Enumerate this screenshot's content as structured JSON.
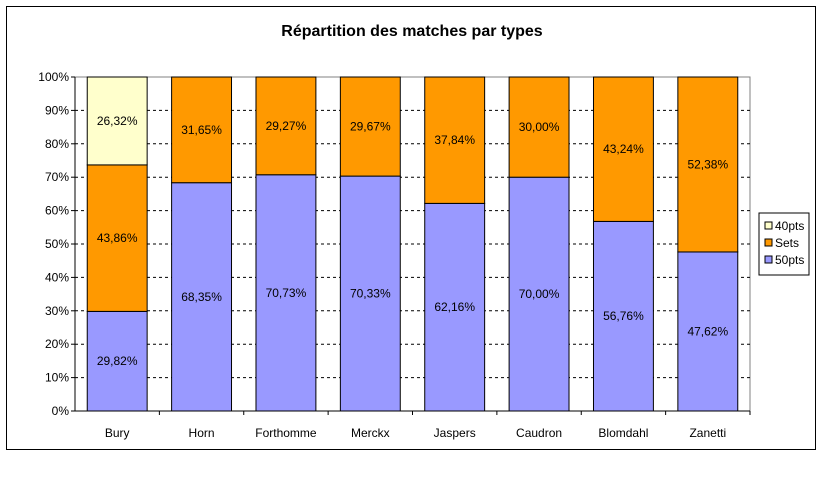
{
  "chart_data": {
    "type": "bar",
    "stacked": true,
    "percent_stacked": true,
    "title": "Répartition des matches par types",
    "xlabel": "",
    "ylabel": "",
    "ylim": [
      0,
      100
    ],
    "y_ticks": [
      "0%",
      "10%",
      "20%",
      "30%",
      "40%",
      "50%",
      "60%",
      "70%",
      "80%",
      "90%",
      "100%"
    ],
    "grid": "horizontal dashed",
    "legend_position": "right",
    "categories": [
      "Bury",
      "Horn",
      "Forthomme",
      "Merckx",
      "Jaspers",
      "Caudron",
      "Blomdahl",
      "Zanetti"
    ],
    "series": [
      {
        "name": "50pts",
        "color": "#9999ff",
        "values": [
          29.82,
          68.35,
          70.73,
          70.33,
          62.16,
          70.0,
          56.76,
          47.62
        ],
        "labels": [
          "29,82%",
          "68,35%",
          "70,73%",
          "70,33%",
          "62,16%",
          "70,00%",
          "56,76%",
          "47,62%"
        ]
      },
      {
        "name": "Sets",
        "color": "#ff9900",
        "values": [
          43.86,
          31.65,
          29.27,
          29.67,
          37.84,
          30.0,
          43.24,
          52.38
        ],
        "labels": [
          "43,86%",
          "31,65%",
          "29,27%",
          "29,67%",
          "37,84%",
          "30,00%",
          "43,24%",
          "52,38%"
        ]
      },
      {
        "name": "40pts",
        "color": "#ffffcc",
        "values": [
          26.32,
          0,
          0,
          0,
          0,
          0,
          0,
          0
        ],
        "labels": [
          "26,32%",
          "",
          "",
          "",
          "",
          "",
          "",
          ""
        ]
      }
    ],
    "legend_order": [
      "40pts",
      "Sets",
      "50pts"
    ]
  }
}
